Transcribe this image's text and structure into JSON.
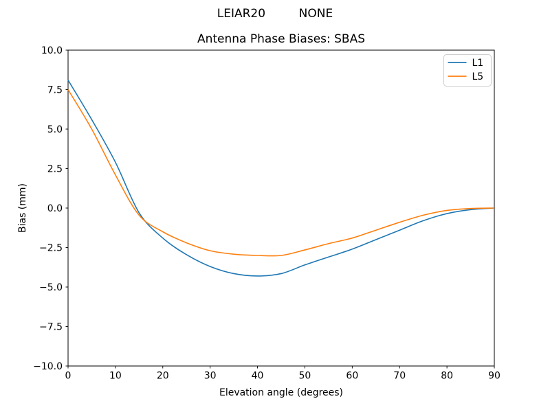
{
  "header": {
    "suptitle": "LEIAR20         NONE"
  },
  "chart_data": {
    "type": "line",
    "title": "Antenna Phase Biases: SBAS",
    "xlabel": "Elevation angle (degrees)",
    "ylabel": "Bias (mm)",
    "xlim": [
      0,
      90
    ],
    "ylim": [
      -10,
      10
    ],
    "grid": false,
    "legend_position": "upper right",
    "xticks": [
      0,
      10,
      20,
      30,
      40,
      50,
      60,
      70,
      80,
      90
    ],
    "xtick_labels": [
      "0",
      "10",
      "20",
      "30",
      "40",
      "50",
      "60",
      "70",
      "80",
      "90"
    ],
    "yticks": [
      10.0,
      7.5,
      5.0,
      2.5,
      0.0,
      -2.5,
      -5.0,
      -7.5,
      -10.0
    ],
    "ytick_labels": [
      "10.0",
      "7.5",
      "5.0",
      "2.5",
      "0.0",
      "−2.5",
      "−5.0",
      "−7.5",
      "−10.0"
    ],
    "x": [
      0,
      5,
      10,
      15,
      20,
      25,
      30,
      35,
      40,
      45,
      50,
      55,
      60,
      65,
      70,
      75,
      80,
      85,
      90
    ],
    "series": [
      {
        "name": "L1",
        "color": "#1f77b4",
        "values": [
          8.1,
          5.6,
          2.9,
          -0.3,
          -1.9,
          -2.95,
          -3.7,
          -4.15,
          -4.3,
          -4.15,
          -3.6,
          -3.1,
          -2.6,
          -2.0,
          -1.4,
          -0.8,
          -0.35,
          -0.1,
          0.0
        ]
      },
      {
        "name": "L5",
        "color": "#ff7f0e",
        "values": [
          7.5,
          5.0,
          2.1,
          -0.45,
          -1.5,
          -2.2,
          -2.7,
          -2.92,
          -3.0,
          -3.0,
          -2.65,
          -2.25,
          -1.9,
          -1.4,
          -0.9,
          -0.45,
          -0.15,
          -0.03,
          0.0
        ]
      }
    ]
  },
  "colors": {
    "axis": "#000000",
    "legend_border": "#cccccc",
    "background": "#ffffff"
  }
}
